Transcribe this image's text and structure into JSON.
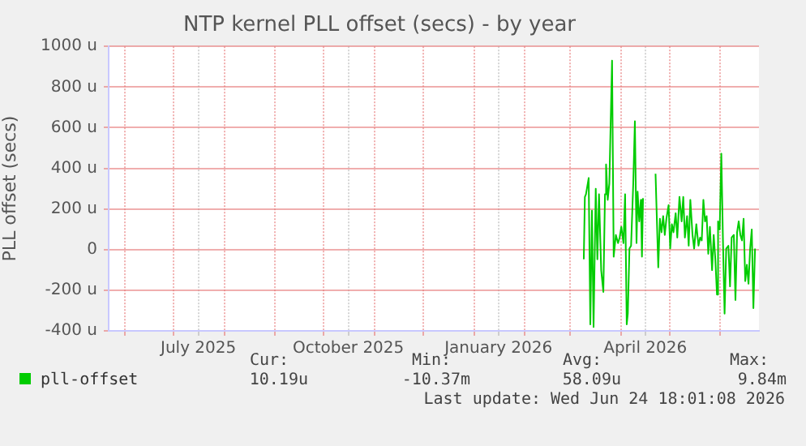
{
  "chart_data": {
    "type": "line",
    "title": "NTP kernel PLL offset (secs) - by year",
    "ylabel": "PLL offset (secs)",
    "x": [
      "2026-03-09T08:00",
      "2026-03-10T00:00",
      "2026-03-10T16:00",
      "2026-03-12T08:00",
      "2026-03-13T08:00",
      "2026-03-14T08:00",
      "2026-03-15T08:00",
      "2026-03-16T16:00",
      "2026-03-17T16:00",
      "2026-03-18T16:00",
      "2026-03-20T00:00",
      "2026-03-21T08:00",
      "2026-03-22T08:00",
      "2026-03-23T00:00",
      "2026-03-24T00:00",
      "2026-03-25T00:00",
      "2026-03-26T16:00",
      "2026-03-27T16:00",
      "2026-03-29T00:00",
      "2026-03-30T08:00",
      "2026-03-31T08:00",
      "2026-04-01T08:00",
      "2026-04-02T16:00",
      "2026-04-03T16:00",
      "2026-04-04T16:00",
      "2026-04-05T08:00",
      "2026-04-06T08:00",
      "2026-04-07T08:00",
      "2026-04-08T16:00",
      "2026-04-09T16:00",
      "2026-04-10T16:00",
      "2026-04-11T08:00",
      "2026-04-12T08:00",
      "2026-04-13T08:00",
      "2026-04-14T00:00",
      "2026-04-14T16:00",
      "2026-04-18T00:00",
      "2026-04-22T08:00",
      "2026-04-24T00:00",
      "2026-04-25T00:00",
      "2026-04-26T00:00",
      "2026-04-27T00:00",
      "2026-04-28T00:00",
      "2026-04-29T00:00",
      "2026-04-30T08:00",
      "2026-05-01T08:00",
      "2026-05-02T08:00",
      "2026-05-03T08:00",
      "2026-05-04T16:00",
      "2026-05-05T16:00",
      "2026-05-07T00:00",
      "2026-05-08T08:00",
      "2026-05-09T08:00",
      "2026-05-10T08:00",
      "2026-05-11T16:00",
      "2026-05-12T16:00",
      "2026-05-13T16:00",
      "2026-05-15T00:00",
      "2026-05-16T00:00",
      "2026-05-17T08:00",
      "2026-05-18T16:00",
      "2026-05-19T16:00",
      "2026-05-20T16:00",
      "2026-05-21T16:00",
      "2026-05-22T16:00",
      "2026-05-23T16:00",
      "2026-05-24T16:00",
      "2026-05-25T16:00",
      "2026-05-27T00:00",
      "2026-05-28T00:00",
      "2026-05-29T00:00",
      "2026-05-30T00:00",
      "2026-05-30T16:00",
      "2026-05-31T16:00",
      "2026-06-01T16:00",
      "2026-06-02T16:00",
      "2026-06-03T16:00",
      "2026-06-04T16:00",
      "2026-06-06T00:00",
      "2026-06-07T00:00",
      "2026-06-08T00:00",
      "2026-06-09T08:00",
      "2026-06-10T08:00",
      "2026-06-11T08:00",
      "2026-06-12T08:00",
      "2026-06-13T08:00",
      "2026-06-14T08:00",
      "2026-06-15T08:00",
      "2026-06-16T08:00",
      "2026-06-17T08:00",
      "2026-06-18T08:00",
      "2026-06-19T08:00",
      "2026-06-20T08:00",
      "2026-06-21T08:00",
      "2026-06-22T08:00"
    ],
    "series": [
      {
        "name": "pll-offset",
        "color": "#00cc00",
        "values": [
          -48,
          259,
          272,
          352,
          -368,
          192,
          -381,
          299,
          -48,
          272,
          -101,
          -208,
          272,
          419,
          245,
          325,
          930,
          -35,
          72,
          32,
          59,
          112,
          32,
          272,
          -368,
          -315,
          5,
          19,
          325,
          632,
          32,
          285,
          139,
          245,
          -35,
          253,
          null,
          373,
          -88,
          152,
          85,
          165,
          72,
          152,
          219,
          5,
          125,
          85,
          179,
          59,
          259,
          139,
          259,
          59,
          165,
          19,
          245,
          72,
          5,
          125,
          19,
          59,
          45,
          245,
          139,
          165,
          -21,
          112,
          -101,
          72,
          -48,
          -221,
          139,
          99,
          472,
          45,
          -315,
          5,
          19,
          -181,
          59,
          72,
          -248,
          85,
          139,
          72,
          45,
          152,
          -155,
          -75,
          -168,
          5,
          99,
          -288,
          5
        ]
      }
    ],
    "xlim": [
      "2025-05-22",
      "2026-06-24T18:00"
    ],
    "xticks": [
      {
        "value": "2025-06-01",
        "label": null
      },
      {
        "value": "2025-07-01",
        "label": null
      },
      {
        "value": "2025-07-16",
        "label": "July 2025"
      },
      {
        "value": "2025-08-01",
        "label": null
      },
      {
        "value": "2025-09-01",
        "label": null
      },
      {
        "value": "2025-10-01",
        "label": null
      },
      {
        "value": "2025-10-16",
        "label": "October 2025"
      },
      {
        "value": "2025-11-01",
        "label": null
      },
      {
        "value": "2025-12-01",
        "label": null
      },
      {
        "value": "2026-01-01",
        "label": null
      },
      {
        "value": "2026-01-16",
        "label": "January 2026"
      },
      {
        "value": "2026-02-01",
        "label": null
      },
      {
        "value": "2026-03-01",
        "label": null
      },
      {
        "value": "2026-04-01",
        "label": null
      },
      {
        "value": "2026-04-16",
        "label": "April 2026"
      },
      {
        "value": "2026-05-01",
        "label": null
      },
      {
        "value": "2026-06-01",
        "label": null
      }
    ],
    "ylim": [
      -400,
      1000
    ],
    "yticks": [
      {
        "value": -400,
        "label": "-400 u"
      },
      {
        "value": -200,
        "label": "-200 u"
      },
      0,
      {
        "value": 200,
        "label": "200 u"
      },
      {
        "value": 400,
        "label": "400 u"
      },
      {
        "value": 600,
        "label": "600 u"
      },
      {
        "value": 800,
        "label": "800 u"
      },
      {
        "value": 1000,
        "label": "1000 u"
      }
    ],
    "grid": true,
    "legend": "bottom",
    "marker": "none",
    "line_style": "solid",
    "annotations": [
      "Cur:",
      "Min:",
      "Avg:",
      "Max:",
      "10.19u",
      "-10.37m",
      "58.09u",
      "9.84m",
      "Last update: Wed Jun 24 18:01:08 2026"
    ]
  }
}
